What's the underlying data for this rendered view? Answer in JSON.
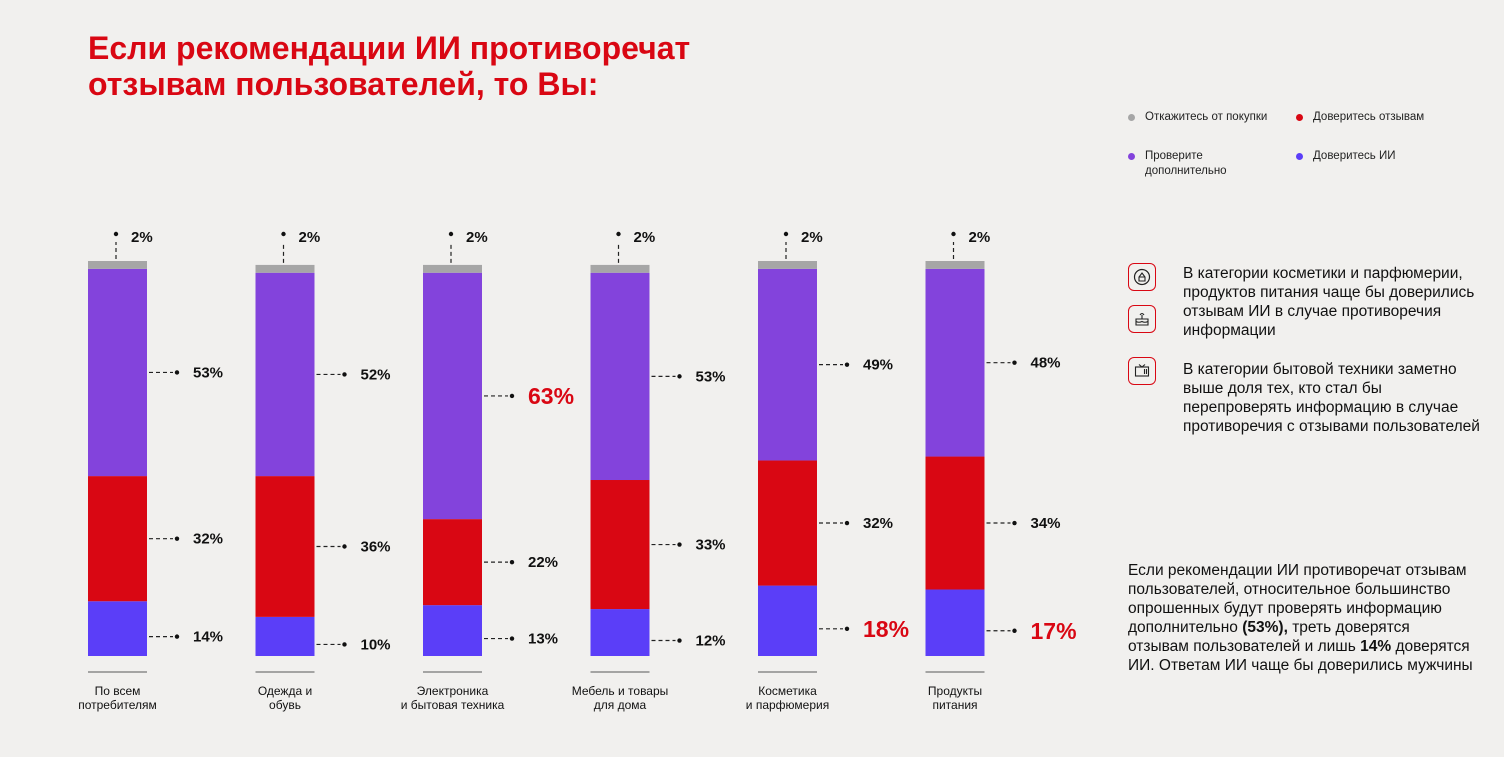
{
  "title": "Если рекомендации ИИ противоречат отзывам пользователей, то Вы:",
  "colors": {
    "refuse": "#a6a6a6",
    "check": "#8343dc",
    "trust_reviews": "#d90713",
    "trust_ai": "#5b3ef8",
    "accent": "#d90713"
  },
  "legend": [
    {
      "label": "Откажитесь от покупки",
      "color": "#a6a6a6"
    },
    {
      "label": "Доверитесь отзывам",
      "color": "#d90713"
    },
    {
      "label": "Проверите дополнительно",
      "color": "#8343dc"
    },
    {
      "label": "Доверитесь ИИ",
      "color": "#5b3ef8"
    }
  ],
  "chart_data": {
    "type": "bar",
    "stacked": true,
    "categories": [
      "По всем потребителям",
      "Одежда и обувь",
      "Электроника и бытовая техника",
      "Мебель и товары для дома",
      "Косметика и парфюмерия",
      "Продукты питания"
    ],
    "series": [
      {
        "name": "Доверитесь ИИ",
        "values": [
          14,
          10,
          13,
          12,
          18,
          17
        ],
        "labels": [
          "14%",
          "10%",
          "13%",
          "12%",
          "18%",
          "17%"
        ],
        "highlight": [
          false,
          false,
          false,
          false,
          true,
          true
        ]
      },
      {
        "name": "Доверитесь отзывам",
        "values": [
          32,
          36,
          22,
          33,
          32,
          34
        ],
        "labels": [
          "32%",
          "36%",
          "22%",
          "33%",
          "32%",
          "34%"
        ],
        "highlight": [
          false,
          false,
          false,
          false,
          false,
          false
        ]
      },
      {
        "name": "Проверите дополнительно",
        "values": [
          53,
          52,
          63,
          53,
          49,
          48
        ],
        "labels": [
          "53%",
          "52%",
          "63%",
          "53%",
          "49%",
          "48%"
        ],
        "highlight": [
          false,
          false,
          true,
          false,
          false,
          false
        ]
      },
      {
        "name": "Откажитесь от покупки",
        "values": [
          2,
          2,
          2,
          2,
          2,
          2
        ],
        "labels": [
          "2%",
          "2%",
          "2%",
          "2%",
          "2%",
          "2%"
        ],
        "highlight": [
          false,
          false,
          false,
          false,
          false,
          false
        ]
      }
    ],
    "ylim": [
      0,
      101
    ]
  },
  "notes": {
    "cosmetics_food": "В категории косметики и парфюмерии, продуктов питания чаще бы доверились отзывам ИИ в случае противоречия информации",
    "electronics": "В категории бытовой техники заметно выше доля тех, кто стал бы перепроверять информацию в случае противоречия с отзывами пользователей",
    "icons": [
      "lipstick-icon",
      "cake-icon",
      "tv-icon"
    ]
  },
  "summary": {
    "part1": "Если рекомендации ИИ противоречат отзывам пользователей, относительное большинство опрошенных будут проверять информацию дополнительно ",
    "bold1": "(53%),",
    "part2": " треть доверятся отзывам пользователей и лишь ",
    "bold2": "14%",
    "part3": " доверятся ИИ. Ответам ИИ чаще бы доверились мужчины"
  }
}
